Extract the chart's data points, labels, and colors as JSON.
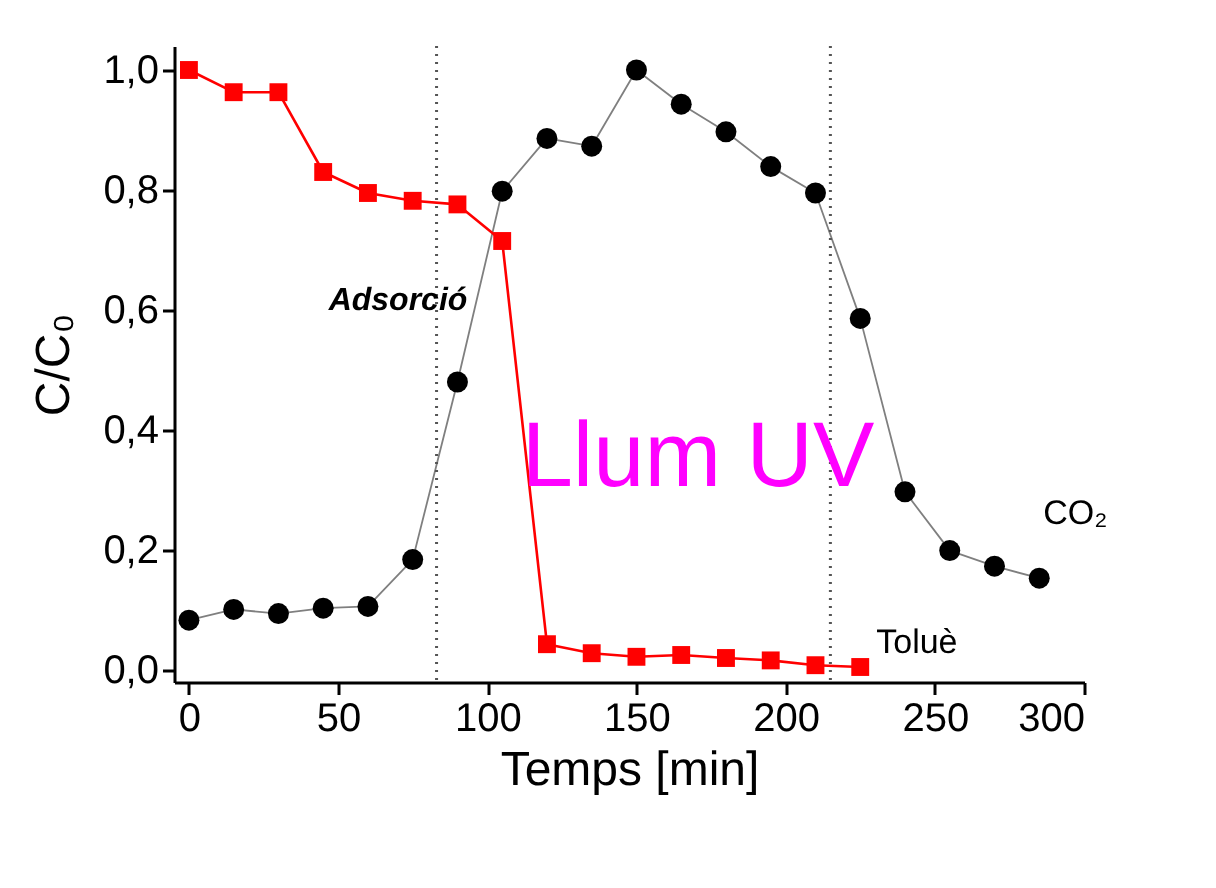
{
  "chart_data": {
    "type": "line",
    "xlabel": "Temps [min]",
    "ylabel": "C/C₀",
    "xlim": [
      -5,
      300
    ],
    "ylim": [
      -0.02,
      1.04
    ],
    "xticks": [
      0,
      50,
      100,
      150,
      200,
      250,
      300
    ],
    "yticks": [
      {
        "value": 0,
        "label": "0,0"
      },
      {
        "value": 0.2,
        "label": "0,2"
      },
      {
        "value": 0.4,
        "label": "0,4"
      },
      {
        "value": 0.6,
        "label": "0,6"
      },
      {
        "value": 0.8,
        "label": "0,8"
      },
      {
        "value": 1.0,
        "label": "1,0"
      }
    ],
    "grid": false,
    "line_style": "solid",
    "series": [
      {
        "name": "CO₂",
        "color": "#000000",
        "marker": "circle",
        "x": [
          0,
          15,
          30,
          45,
          60,
          75,
          90,
          105,
          120,
          135,
          150,
          165,
          180,
          195,
          210,
          225,
          240,
          255,
          270,
          285
        ],
        "values": [
          0.083,
          0.101,
          0.094,
          0.103,
          0.106,
          0.184,
          0.48,
          0.798,
          0.886,
          0.873,
          1.0,
          0.943,
          0.897,
          0.839,
          0.795,
          0.586,
          0.297,
          0.199,
          0.173,
          0.153
        ]
      },
      {
        "name": "Toluè",
        "color": "#ff0000",
        "marker": "square",
        "x": [
          0,
          15,
          30,
          45,
          60,
          75,
          90,
          105,
          120,
          135,
          150,
          165,
          180,
          195,
          210,
          225
        ],
        "values": [
          1.0,
          0.963,
          0.963,
          0.83,
          0.795,
          0.782,
          0.776,
          0.715,
          0.043,
          0.028,
          0.022,
          0.025,
          0.02,
          0.016,
          0.008,
          0.005
        ]
      }
    ],
    "ref_lines": [
      {
        "axis": "x",
        "value": 83,
        "color": "#555555",
        "line_style": "dotted"
      },
      {
        "axis": "x",
        "value": 215,
        "color": "#555555",
        "line_style": "dotted"
      }
    ],
    "annotations": [
      "Adsorció",
      "Llum UV"
    ]
  }
}
